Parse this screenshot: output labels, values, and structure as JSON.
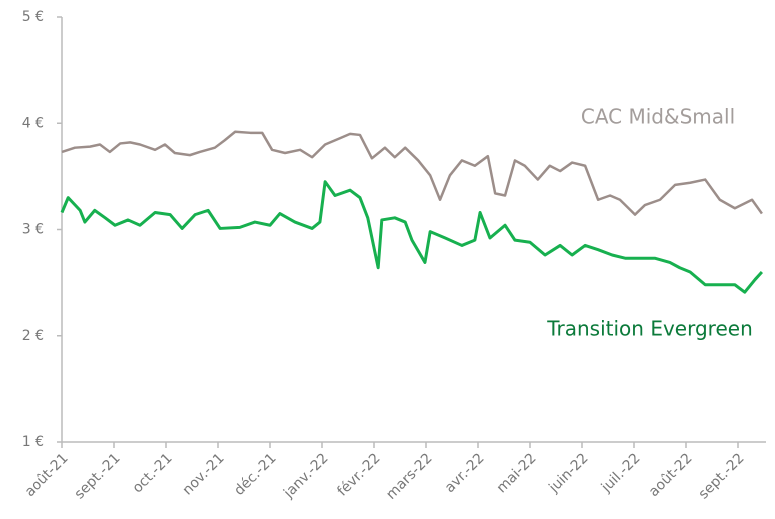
{
  "chart_data": {
    "type": "line",
    "xlim": [
      0,
      13.5
    ],
    "xticks": [
      {
        "value": 0,
        "label": "août-21"
      },
      {
        "value": 1,
        "label": "sept.-21"
      },
      {
        "value": 2,
        "label": "oct.-21"
      },
      {
        "value": 3,
        "label": "nov.-21"
      },
      {
        "value": 4,
        "label": "déc.-21"
      },
      {
        "value": 5,
        "label": "janv.-22"
      },
      {
        "value": 6,
        "label": "févr.-22"
      },
      {
        "value": 7,
        "label": "mars-22"
      },
      {
        "value": 8,
        "label": "avr.-22"
      },
      {
        "value": 9,
        "label": "mai-22"
      },
      {
        "value": 10,
        "label": "juin-22"
      },
      {
        "value": 11,
        "label": "juil.-22"
      },
      {
        "value": 12,
        "label": "août-22"
      },
      {
        "value": 13,
        "label": "sept.-22"
      }
    ],
    "ylim": [
      1,
      5
    ],
    "yticks": [
      {
        "value": 1,
        "label": "1 €"
      },
      {
        "value": 2,
        "label": "2 €"
      },
      {
        "value": 3,
        "label": "3 €"
      },
      {
        "value": 4,
        "label": "4 €"
      },
      {
        "value": 5,
        "label": "5 €"
      }
    ],
    "series": [
      {
        "name": "CAC Mid&Small",
        "color": "#9c8e8a",
        "label_color": "#a39d9b",
        "x": [
          0,
          0.25,
          0.54,
          0.73,
          0.92,
          1.12,
          1.31,
          1.5,
          1.79,
          1.98,
          2.17,
          2.46,
          2.65,
          2.94,
          3.13,
          3.33,
          3.62,
          3.85,
          4.04,
          4.29,
          4.58,
          4.81,
          5.06,
          5.35,
          5.54,
          5.73,
          5.96,
          6.21,
          6.4,
          6.6,
          6.85,
          7.08,
          7.27,
          7.46,
          7.69,
          7.94,
          8.19,
          8.33,
          8.52,
          8.71,
          8.9,
          9.15,
          9.38,
          9.58,
          9.81,
          10.06,
          10.31,
          10.54,
          10.73,
          11.02,
          11.21,
          11.5,
          11.79,
          12.08,
          12.37,
          12.65,
          12.94,
          13.27,
          13.46
        ],
        "values": [
          3.73,
          3.77,
          3.78,
          3.8,
          3.73,
          3.81,
          3.82,
          3.8,
          3.75,
          3.8,
          3.72,
          3.7,
          3.73,
          3.77,
          3.84,
          3.92,
          3.91,
          3.91,
          3.75,
          3.72,
          3.75,
          3.68,
          3.8,
          3.86,
          3.9,
          3.89,
          3.67,
          3.77,
          3.68,
          3.77,
          3.65,
          3.51,
          3.28,
          3.51,
          3.65,
          3.6,
          3.69,
          3.34,
          3.32,
          3.65,
          3.6,
          3.47,
          3.6,
          3.55,
          3.63,
          3.6,
          3.28,
          3.32,
          3.28,
          3.14,
          3.23,
          3.28,
          3.42,
          3.44,
          3.47,
          3.28,
          3.2,
          3.28,
          3.15
        ]
      },
      {
        "name": "Transition Evergreen",
        "color": "#17b04f",
        "label_color": "#0b7a3a",
        "x": [
          0,
          0.12,
          0.35,
          0.44,
          0.63,
          0.83,
          1.02,
          1.27,
          1.5,
          1.79,
          2.08,
          2.31,
          2.56,
          2.81,
          3.04,
          3.42,
          3.71,
          4.0,
          4.19,
          4.48,
          4.81,
          4.96,
          5.06,
          5.25,
          5.54,
          5.73,
          5.88,
          6.08,
          6.15,
          6.4,
          6.6,
          6.73,
          6.98,
          7.08,
          7.37,
          7.69,
          7.94,
          8.04,
          8.23,
          8.52,
          8.71,
          9.0,
          9.29,
          9.58,
          9.81,
          10.06,
          10.31,
          10.58,
          10.83,
          11.12,
          11.4,
          11.69,
          11.88,
          12.08,
          12.37,
          12.65,
          12.94,
          13.13,
          13.33,
          13.46
        ],
        "values": [
          3.16,
          3.3,
          3.18,
          3.07,
          3.18,
          3.11,
          3.04,
          3.09,
          3.04,
          3.16,
          3.14,
          3.01,
          3.14,
          3.18,
          3.01,
          3.02,
          3.07,
          3.04,
          3.15,
          3.07,
          3.01,
          3.07,
          3.45,
          3.32,
          3.37,
          3.3,
          3.11,
          2.64,
          3.09,
          3.11,
          3.07,
          2.9,
          2.69,
          2.98,
          2.92,
          2.85,
          2.9,
          3.16,
          2.92,
          3.04,
          2.9,
          2.88,
          2.76,
          2.85,
          2.76,
          2.85,
          2.81,
          2.76,
          2.73,
          2.73,
          2.73,
          2.69,
          2.64,
          2.6,
          2.48,
          2.48,
          2.48,
          2.41,
          2.53,
          2.6
        ]
      }
    ]
  }
}
